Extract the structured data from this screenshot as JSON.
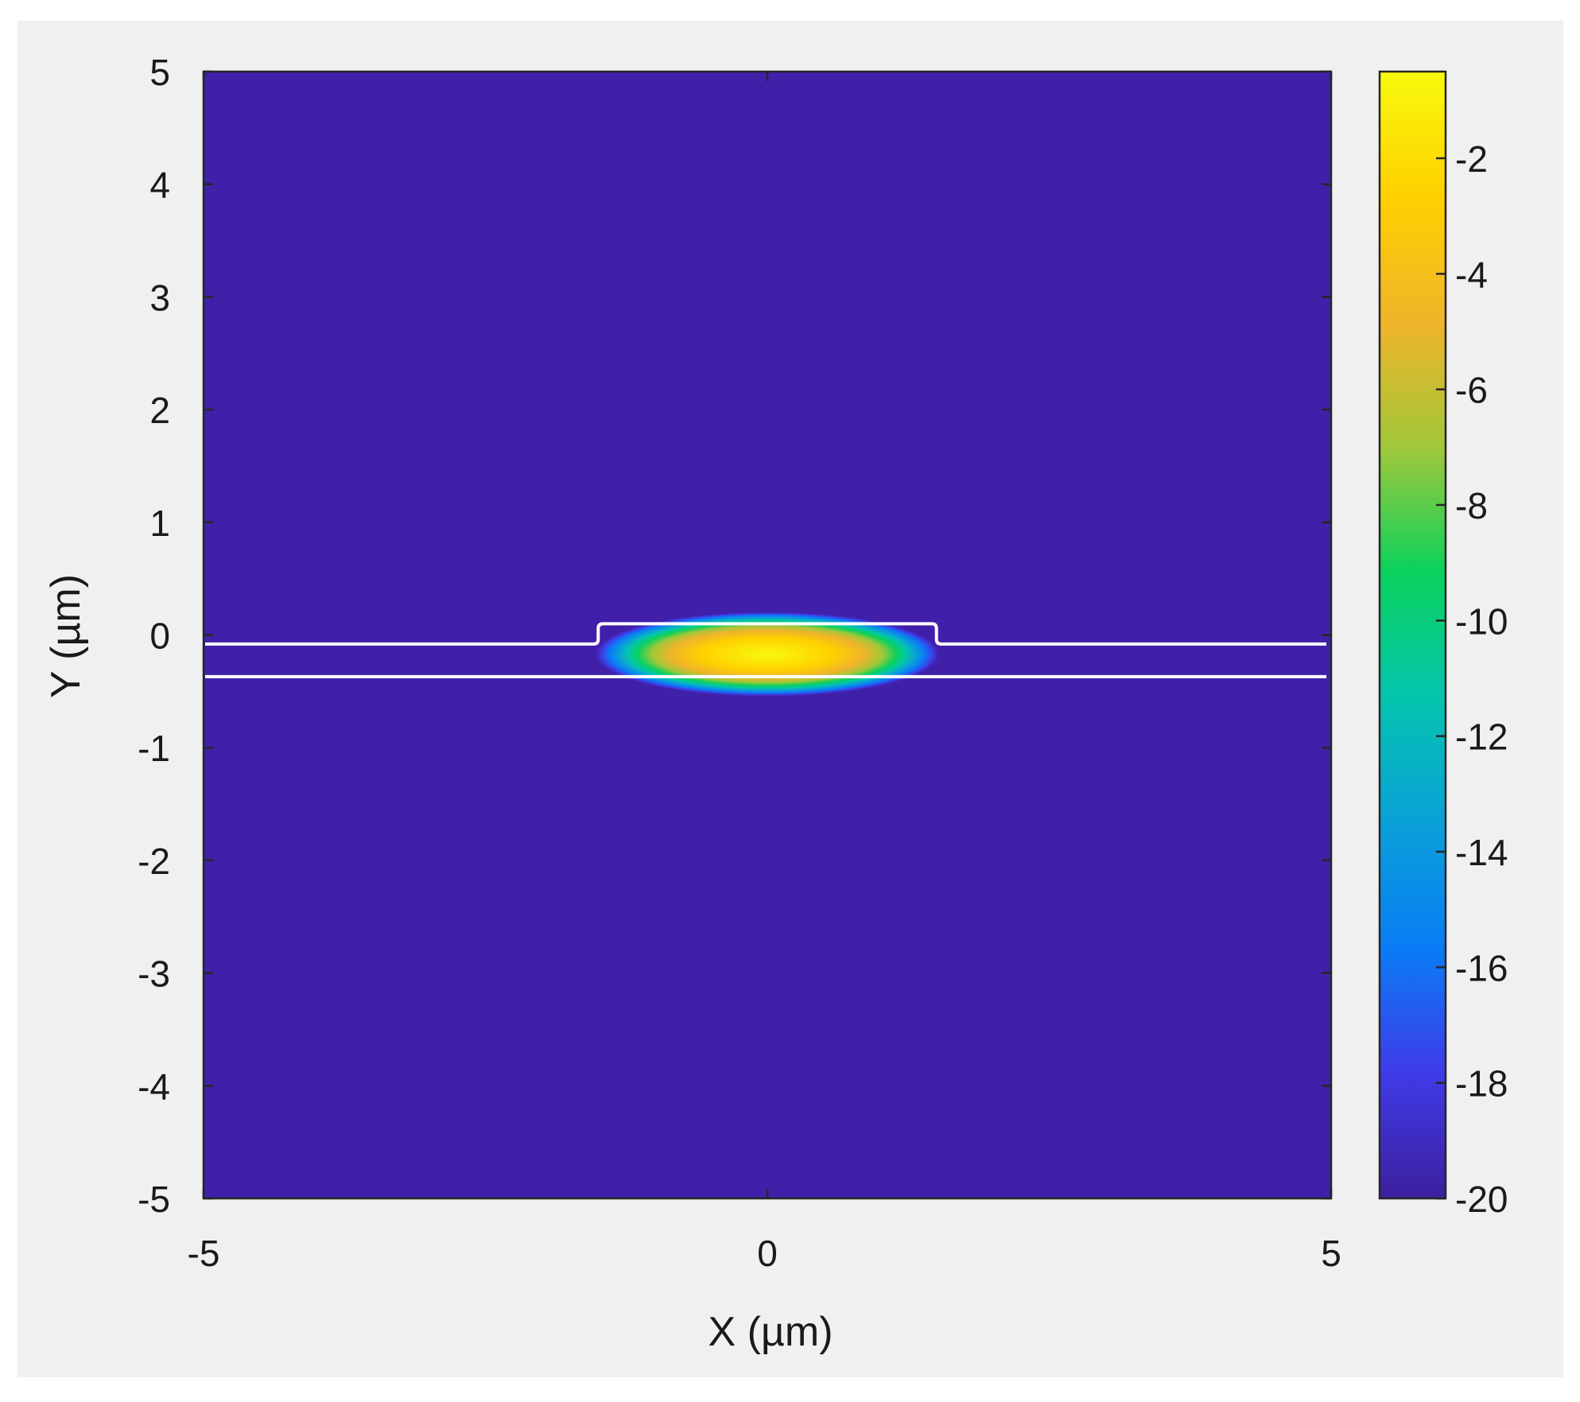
{
  "chart_data": {
    "type": "heatmap",
    "title": "",
    "xlabel": "X (µm)",
    "ylabel": "Y (µm)",
    "xlim": [
      -5,
      5
    ],
    "ylim": [
      -5,
      5
    ],
    "x_ticks": [
      {
        "value": -5,
        "label": "-5"
      },
      {
        "value": 0,
        "label": "0"
      },
      {
        "value": 5,
        "label": "5"
      }
    ],
    "y_ticks": [
      {
        "value": 5,
        "label": "5"
      },
      {
        "value": 4,
        "label": "4"
      },
      {
        "value": 3,
        "label": "3"
      },
      {
        "value": 2,
        "label": "2"
      },
      {
        "value": 1,
        "label": "1"
      },
      {
        "value": 0,
        "label": "0"
      },
      {
        "value": -1,
        "label": "-1"
      },
      {
        "value": -2,
        "label": "-2"
      },
      {
        "value": -3,
        "label": "-3"
      },
      {
        "value": -4,
        "label": "-4"
      },
      {
        "value": -5,
        "label": "-5"
      }
    ],
    "colorbar": {
      "range": [
        -20,
        -0.5
      ],
      "ticks": [
        {
          "value": -2,
          "label": "-2"
        },
        {
          "value": -4,
          "label": "-4"
        },
        {
          "value": -6,
          "label": "-6"
        },
        {
          "value": -8,
          "label": "-8"
        },
        {
          "value": -10,
          "label": "-10"
        },
        {
          "value": -12,
          "label": "-12"
        },
        {
          "value": -14,
          "label": "-14"
        },
        {
          "value": -16,
          "label": "-16"
        },
        {
          "value": -18,
          "label": "-18"
        },
        {
          "value": -20,
          "label": "-20"
        }
      ],
      "colormap": [
        "#3d1f9e",
        "#3f3be8",
        "#0a7cf5",
        "#0aa0d8",
        "#04c4ae",
        "#0ad15c",
        "#a2c73a",
        "#f0b42a",
        "#ffd000",
        "#f8fa0d"
      ]
    },
    "background_color": "#4020a8",
    "field": {
      "peak_value": -0.5,
      "center": [
        0,
        -0.17
      ],
      "x_half_width": 1.55,
      "y_half_width": 0.38
    },
    "structure_outline": {
      "ridge_x": [
        -1.5,
        1.5
      ],
      "ridge_top_y": 0.1,
      "slab_top_y": -0.08,
      "slab_bottom_y": -0.37,
      "color": "#ffffff"
    },
    "grid": false,
    "legend": "colorbar-right"
  }
}
